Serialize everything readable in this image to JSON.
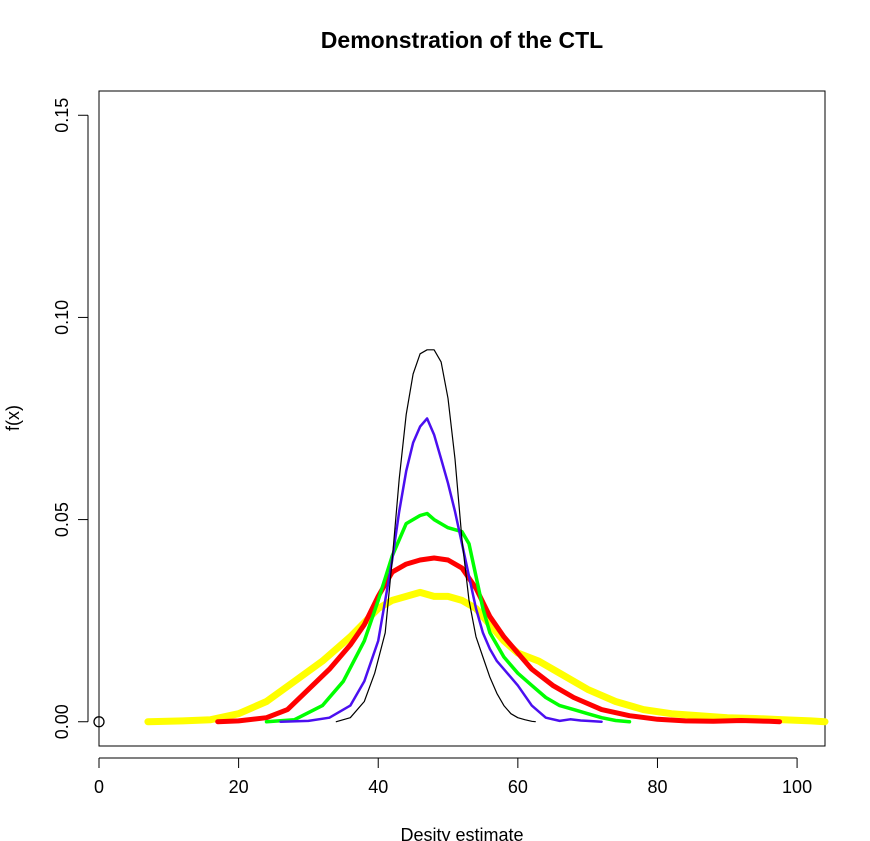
{
  "chart_data": {
    "type": "line",
    "title": "Demonstration of the CTL",
    "xlabel": "Desity estimate",
    "ylabel": "f(x)",
    "xlim": [
      0,
      104
    ],
    "ylim": [
      -0.006,
      0.156
    ],
    "xticks": [
      0,
      20,
      40,
      60,
      80,
      100
    ],
    "yticks": [
      0.0,
      0.05,
      0.1,
      0.15
    ],
    "xtick_labels": [
      "0",
      "20",
      "40",
      "60",
      "80",
      "100"
    ],
    "ytick_labels": [
      "0.00",
      "0.05",
      "0.10",
      "0.15"
    ],
    "grid": false,
    "legend": false,
    "points": [
      {
        "x": 0,
        "y": 0,
        "marker": "open-circle"
      }
    ],
    "series": [
      {
        "color": "#000000",
        "width": 1.2,
        "x": [
          34,
          36,
          38,
          39.5,
          41,
          42,
          43,
          44,
          45,
          46,
          47,
          48,
          49,
          50,
          51,
          52,
          53,
          54,
          55,
          56,
          57,
          58,
          59,
          60,
          61,
          62,
          62.5
        ],
        "y": [
          0.0,
          0.001,
          0.005,
          0.012,
          0.022,
          0.04,
          0.06,
          0.076,
          0.086,
          0.091,
          0.092,
          0.092,
          0.089,
          0.08,
          0.065,
          0.045,
          0.03,
          0.021,
          0.016,
          0.011,
          0.007,
          0.004,
          0.002,
          0.001,
          0.0005,
          0.0001,
          0.0
        ]
      },
      {
        "color": "#4b0ff0",
        "width": 2.5,
        "x": [
          26,
          30,
          33,
          36,
          38,
          40,
          42,
          43,
          44,
          45,
          46,
          47,
          48,
          49,
          50,
          51,
          52,
          53,
          54,
          55,
          56,
          57,
          58,
          60,
          62,
          64,
          66,
          67.5,
          69,
          70,
          72
        ],
        "y": [
          0.0,
          0.0002,
          0.001,
          0.004,
          0.01,
          0.02,
          0.04,
          0.052,
          0.062,
          0.069,
          0.073,
          0.075,
          0.071,
          0.065,
          0.059,
          0.052,
          0.044,
          0.036,
          0.028,
          0.022,
          0.018,
          0.015,
          0.013,
          0.009,
          0.004,
          0.001,
          0.0002,
          0.0006,
          0.0003,
          0.0002,
          0.0
        ]
      },
      {
        "color": "#00ff00",
        "width": 3.5,
        "x": [
          24,
          28,
          32,
          35,
          38,
          40,
          42,
          44,
          46,
          47,
          48,
          50,
          52,
          53,
          54,
          55,
          56,
          57,
          58,
          60,
          62,
          64,
          66,
          68,
          70,
          72,
          74,
          76
        ],
        "y": [
          0.0,
          0.0005,
          0.004,
          0.01,
          0.02,
          0.03,
          0.041,
          0.049,
          0.051,
          0.0515,
          0.05,
          0.048,
          0.047,
          0.044,
          0.036,
          0.028,
          0.022,
          0.019,
          0.016,
          0.012,
          0.009,
          0.006,
          0.004,
          0.003,
          0.002,
          0.001,
          0.0003,
          0.0
        ]
      },
      {
        "color": "#ff0000",
        "width": 5,
        "x": [
          17,
          20,
          24,
          27,
          30,
          33,
          36,
          38,
          40,
          42,
          44,
          46,
          48,
          50,
          52,
          54,
          56,
          58,
          60,
          62,
          65,
          68,
          72,
          76,
          80,
          84,
          88,
          92,
          96,
          97.5
        ],
        "y": [
          0.0,
          0.0002,
          0.001,
          0.003,
          0.008,
          0.013,
          0.019,
          0.024,
          0.031,
          0.037,
          0.039,
          0.04,
          0.0405,
          0.04,
          0.038,
          0.033,
          0.026,
          0.021,
          0.017,
          0.013,
          0.009,
          0.006,
          0.003,
          0.0015,
          0.0006,
          0.0002,
          0.0001,
          0.0003,
          0.0001,
          0.0
        ]
      },
      {
        "color": "#ffff00",
        "width": 7,
        "x": [
          7,
          12,
          16,
          20,
          24,
          28,
          32,
          36,
          40,
          42,
          44,
          46,
          48,
          50,
          52,
          54,
          56,
          58,
          60,
          63,
          66,
          70,
          74,
          78,
          82,
          86,
          90,
          94,
          98,
          102,
          104
        ],
        "y": [
          0.0,
          0.0002,
          0.0005,
          0.002,
          0.005,
          0.01,
          0.015,
          0.021,
          0.028,
          0.03,
          0.031,
          0.032,
          0.031,
          0.031,
          0.03,
          0.028,
          0.024,
          0.02,
          0.017,
          0.015,
          0.012,
          0.008,
          0.005,
          0.003,
          0.002,
          0.0015,
          0.001,
          0.0008,
          0.0005,
          0.0002,
          0.0
        ]
      }
    ]
  }
}
